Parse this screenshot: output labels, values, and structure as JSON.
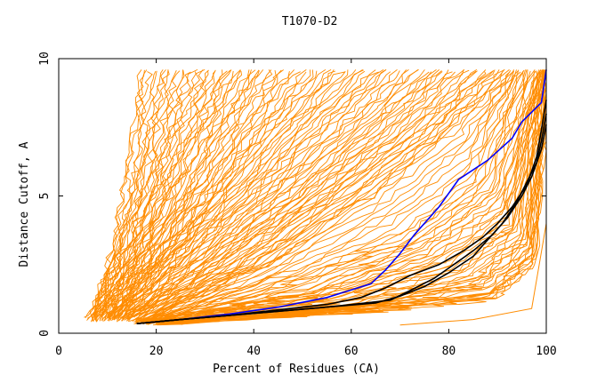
{
  "chart_data": {
    "type": "line",
    "title": "T1070-D2",
    "xlabel": "Percent of Residues (CA)",
    "ylabel": "Distance Cutoff, A",
    "xlim": [
      0,
      100
    ],
    "ylim": [
      0,
      10
    ],
    "x_ticks": [
      "0",
      "20",
      "40",
      "60",
      "80",
      "100"
    ],
    "y_ticks": [
      "0",
      "5",
      "10"
    ],
    "x_tick_values": [
      0,
      20,
      40,
      60,
      80,
      100
    ],
    "y_tick_values": [
      0,
      5,
      10
    ],
    "grid": false,
    "legend": "none",
    "colors": {
      "bundle": "#ff8c00",
      "highlight_blue": "#0000ff",
      "highlight_black": "#000000"
    },
    "bundle_seeds": [
      [
        [
          6,
          0.5
        ],
        [
          10,
          2.5
        ],
        [
          13,
          5
        ],
        [
          15,
          7.5
        ],
        [
          16.5,
          9.6
        ]
      ],
      [
        [
          7,
          0.5
        ],
        [
          12,
          2.5
        ],
        [
          17,
          5
        ],
        [
          20,
          7.5
        ],
        [
          23,
          9.6
        ]
      ],
      [
        [
          8,
          0.5
        ],
        [
          14,
          2.5
        ],
        [
          20,
          5
        ],
        [
          25,
          7.5
        ],
        [
          30,
          9.6
        ]
      ],
      [
        [
          9,
          0.5
        ],
        [
          16,
          2.5
        ],
        [
          23,
          5
        ],
        [
          30,
          7.5
        ],
        [
          36,
          9.6
        ]
      ],
      [
        [
          10,
          0.5
        ],
        [
          18,
          2.5
        ],
        [
          27,
          5
        ],
        [
          35,
          7.5
        ],
        [
          42,
          9.6
        ]
      ],
      [
        [
          11,
          0.5
        ],
        [
          20,
          2.5
        ],
        [
          31,
          5
        ],
        [
          41,
          7.5
        ],
        [
          50,
          9.6
        ]
      ],
      [
        [
          12,
          0.5
        ],
        [
          22,
          2.5
        ],
        [
          35,
          5
        ],
        [
          47,
          7.5
        ],
        [
          58,
          9.6
        ]
      ],
      [
        [
          13,
          0.5
        ],
        [
          25,
          2.5
        ],
        [
          40,
          5
        ],
        [
          54,
          7.5
        ],
        [
          66,
          9.6
        ]
      ],
      [
        [
          14,
          0.5
        ],
        [
          29,
          2.5
        ],
        [
          46,
          5
        ],
        [
          62,
          7.5
        ],
        [
          74,
          9.6
        ]
      ],
      [
        [
          15,
          0.5
        ],
        [
          33,
          2.5
        ],
        [
          52,
          5
        ],
        [
          69,
          7.5
        ],
        [
          81,
          9.6
        ]
      ],
      [
        [
          16,
          0.4
        ],
        [
          38,
          2.5
        ],
        [
          58,
          5
        ],
        [
          76,
          7.5
        ],
        [
          88,
          9.6
        ]
      ],
      [
        [
          17,
          0.4
        ],
        [
          43,
          2.5
        ],
        [
          65,
          5
        ],
        [
          82,
          7.5
        ],
        [
          93,
          9.6
        ]
      ],
      [
        [
          18,
          0.4
        ],
        [
          48,
          2
        ],
        [
          70,
          3.5
        ],
        [
          85,
          5.5
        ],
        [
          95,
          9.6
        ]
      ],
      [
        [
          18,
          0.4
        ],
        [
          52,
          1.5
        ],
        [
          75,
          3
        ],
        [
          90,
          5
        ],
        [
          98,
          9.6
        ]
      ],
      [
        [
          19,
          0.4
        ],
        [
          55,
          1.2
        ],
        [
          80,
          2.5
        ],
        [
          92,
          4
        ],
        [
          99,
          9.6
        ]
      ],
      [
        [
          20,
          0.35
        ],
        [
          60,
          1
        ],
        [
          85,
          2
        ],
        [
          95,
          3.5
        ],
        [
          99.5,
          9.6
        ]
      ],
      [
        [
          20,
          0.35
        ],
        [
          62,
          0.9
        ],
        [
          88,
          1.5
        ],
        [
          97,
          3
        ],
        [
          100,
          9.6
        ]
      ],
      [
        [
          21,
          0.35
        ],
        [
          65,
          0.8
        ],
        [
          90,
          1.2
        ],
        [
          98,
          2.5
        ],
        [
          100,
          8
        ]
      ],
      [
        [
          70,
          0.3
        ],
        [
          85,
          0.5
        ],
        [
          97,
          0.9
        ],
        [
          100,
          4
        ]
      ]
    ],
    "series": [
      {
        "color": "#0000ff",
        "x": [
          16,
          25,
          35,
          45,
          55,
          64,
          67,
          70,
          73,
          78,
          82,
          88,
          93,
          95,
          99,
          100
        ],
        "y": [
          0.35,
          0.5,
          0.7,
          0.95,
          1.3,
          1.8,
          2.3,
          2.9,
          3.6,
          4.6,
          5.6,
          6.3,
          7.1,
          7.7,
          8.4,
          9.6
        ]
      },
      {
        "color": "#000000",
        "x": [
          16,
          25,
          35,
          45,
          55,
          62,
          67,
          72,
          78,
          83,
          87,
          90,
          93,
          96,
          98,
          99,
          100
        ],
        "y": [
          0.35,
          0.5,
          0.65,
          0.85,
          1.05,
          1.3,
          1.65,
          2.1,
          2.5,
          3.0,
          3.5,
          4.0,
          4.6,
          5.4,
          6.4,
          7.4,
          8.5
        ]
      },
      {
        "color": "#000000",
        "x": [
          16,
          25,
          35,
          45,
          55,
          65,
          70,
          75,
          80,
          85,
          88,
          91,
          94,
          96,
          98,
          99,
          100
        ],
        "y": [
          0.35,
          0.5,
          0.65,
          0.8,
          0.95,
          1.1,
          1.35,
          1.7,
          2.2,
          2.8,
          3.4,
          4.0,
          4.8,
          5.5,
          6.2,
          7.0,
          8.0
        ]
      },
      {
        "color": "#000000",
        "x": [
          16,
          25,
          35,
          45,
          55,
          68,
          72,
          77,
          81,
          85,
          89,
          92,
          95,
          97,
          99,
          100
        ],
        "y": [
          0.35,
          0.5,
          0.65,
          0.8,
          0.95,
          1.2,
          1.55,
          2.0,
          2.5,
          3.0,
          3.6,
          4.2,
          5.0,
          5.7,
          6.7,
          7.6
        ]
      }
    ]
  }
}
